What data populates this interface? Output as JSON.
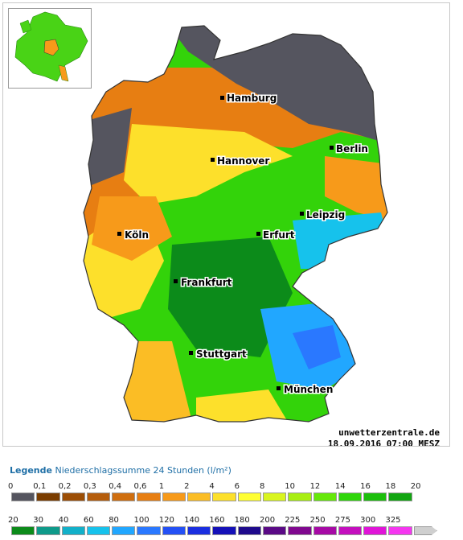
{
  "map": {
    "credit_site": "unwetterzentrale.de",
    "credit_time": "18.09.2016 07:00 MESZ",
    "cities": [
      {
        "name": "Hamburg"
      },
      {
        "name": "Berlin"
      },
      {
        "name": "Hannover"
      },
      {
        "name": "Leipzig"
      },
      {
        "name": "Erfurt"
      },
      {
        "name": "Köln"
      },
      {
        "name": "Frankfurt"
      },
      {
        "name": "Stuttgart"
      },
      {
        "name": "München"
      }
    ]
  },
  "legend": {
    "title_bold": "Legende",
    "title_rest": " Niederschlagssumme 24 Stunden  (l/m²)",
    "row1": [
      {
        "label": "0",
        "color": "#55555f"
      },
      {
        "label": "0,1",
        "color": "#7a3d00"
      },
      {
        "label": "0,2",
        "color": "#9c4e05"
      },
      {
        "label": "0,3",
        "color": "#b55d0c"
      },
      {
        "label": "0,4",
        "color": "#cf6e0f"
      },
      {
        "label": "0,6",
        "color": "#e77e12"
      },
      {
        "label": "1",
        "color": "#f79a1a"
      },
      {
        "label": "2",
        "color": "#fbbd25"
      },
      {
        "label": "4",
        "color": "#fde02b"
      },
      {
        "label": "6",
        "color": "#ffff33"
      },
      {
        "label": "8",
        "color": "#d9f51f"
      },
      {
        "label": "10",
        "color": "#a8ee12"
      },
      {
        "label": "12",
        "color": "#66e80a"
      },
      {
        "label": "14",
        "color": "#2fd60a"
      },
      {
        "label": "16",
        "color": "#1cbf0c"
      },
      {
        "label": "18",
        "color": "#12a611"
      },
      {
        "label": "20",
        "color": ""
      }
    ],
    "row2": [
      {
        "label": "20",
        "color": "#0c8b1a"
      },
      {
        "label": "30",
        "color": "#0e9a8a"
      },
      {
        "label": "40",
        "color": "#12b0c9"
      },
      {
        "label": "60",
        "color": "#16c2ec"
      },
      {
        "label": "80",
        "color": "#21a7ff"
      },
      {
        "label": "100",
        "color": "#2a78ff"
      },
      {
        "label": "120",
        "color": "#2450f5"
      },
      {
        "label": "140",
        "color": "#1a2ee0"
      },
      {
        "label": "160",
        "color": "#1410b8"
      },
      {
        "label": "180",
        "color": "#1e0a8c"
      },
      {
        "label": "200",
        "color": "#5a0a86"
      },
      {
        "label": "225",
        "color": "#80088f"
      },
      {
        "label": "250",
        "color": "#a60aa5"
      },
      {
        "label": "275",
        "color": "#c40fbe"
      },
      {
        "label": "300",
        "color": "#e014d8"
      },
      {
        "label": "325",
        "color": "#f536f0"
      },
      {
        "label": "",
        "color": "#cfcfcf"
      }
    ]
  }
}
